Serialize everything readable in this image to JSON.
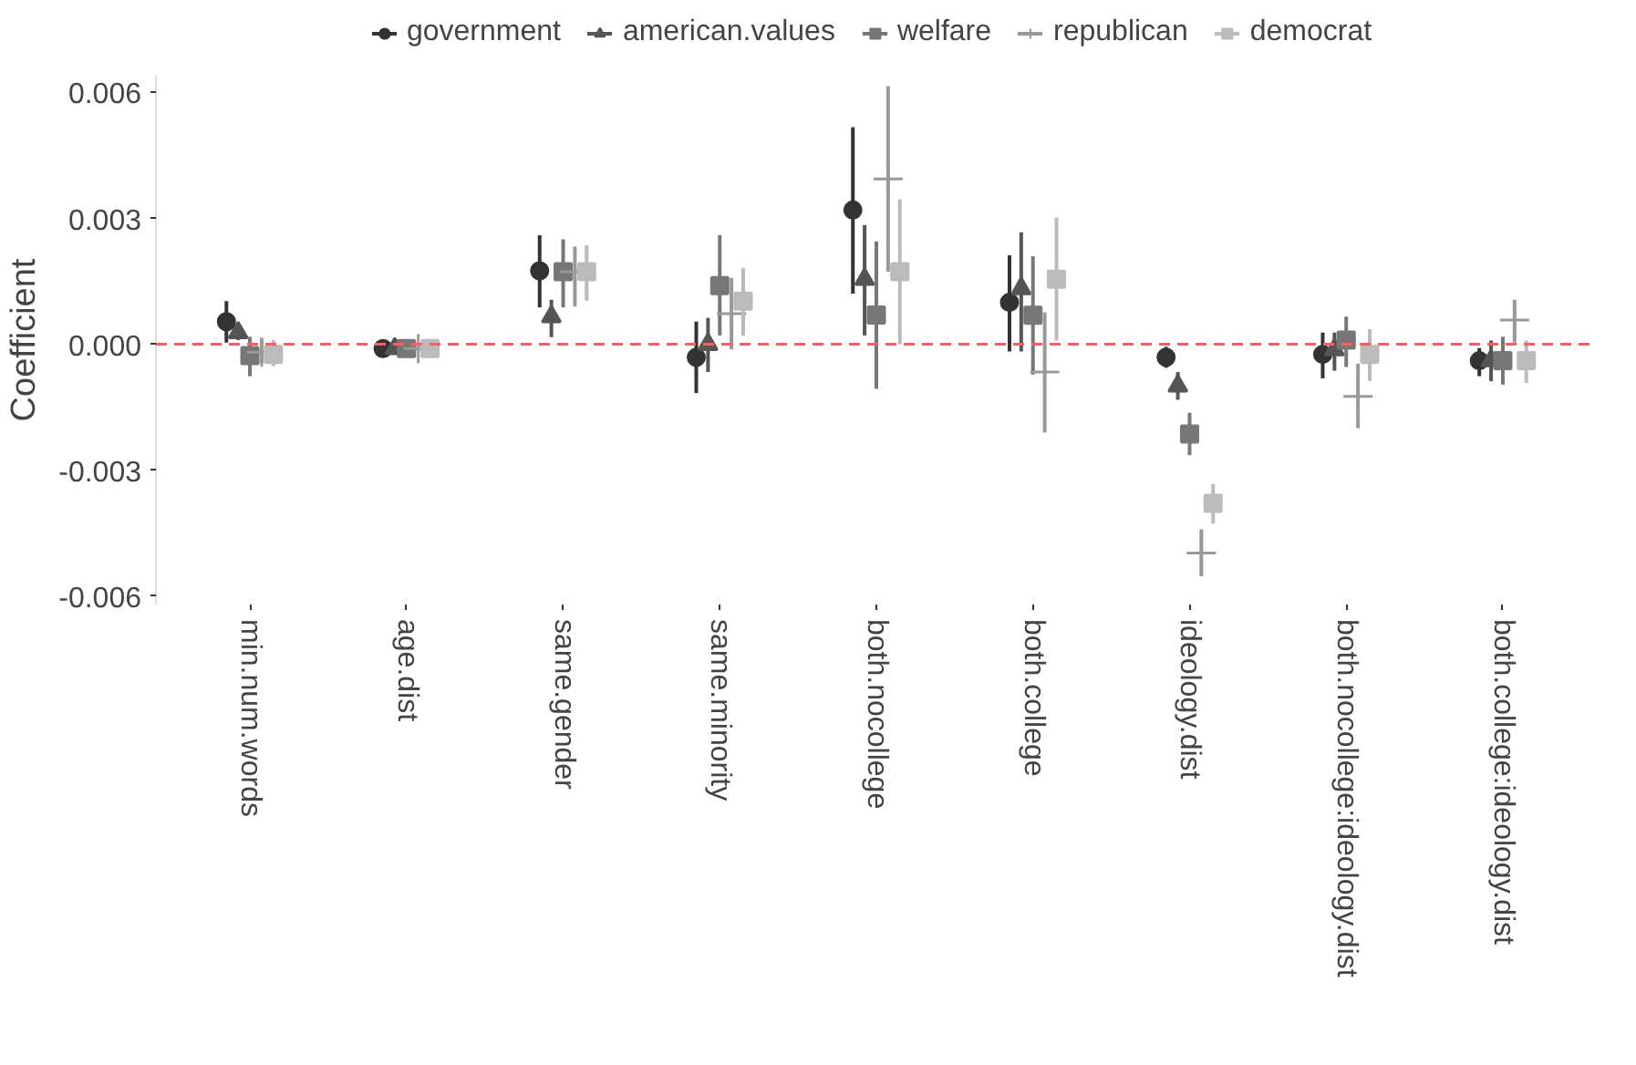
{
  "chart_data": {
    "type": "scatter",
    "ylabel": "Coefficient",
    "categories": [
      "min.num.words",
      "age.dist",
      "same.gender",
      "same.minority",
      "both.nocollege",
      "both.college",
      "ideology.dist",
      "both.nocollege:ideology.dist",
      "both.college:ideology.dist"
    ],
    "series": [
      {
        "name": "government",
        "color": "#333333",
        "marker": "circle",
        "values": [
          0.00054,
          -0.0001,
          0.00175,
          -0.00031,
          0.0032,
          0.001,
          -0.00031,
          -0.00024,
          -0.00039
        ],
        "errors": [
          [
            4e-05,
            0.00103
          ],
          [
            -0.00015,
            -3e-05
          ],
          [
            0.00088,
            0.0026
          ],
          [
            -0.00116,
            0.00054
          ],
          [
            0.00121,
            0.00517
          ],
          [
            -0.00017,
            0.00212
          ],
          [
            -0.00056,
            -6e-05
          ],
          [
            -0.00081,
            0.00028
          ],
          [
            -0.00076,
            -9e-05
          ]
        ]
      },
      {
        "name": "american.values",
        "color": "#555555",
        "marker": "triangle",
        "values": [
          0.00028,
          -0.0001,
          0.00066,
          0,
          0.00155,
          0.00133,
          -0.00099,
          -0.00013,
          -0.00039
        ],
        "errors": [
          [
            0.0001,
            0.00045
          ],
          [
            -0.00016,
            -4e-05
          ],
          [
            0.00017,
            0.00106
          ],
          [
            -0.00066,
            0.00063
          ],
          [
            0.00021,
            0.00284
          ],
          [
            -0.00017,
            0.00267
          ],
          [
            -0.00132,
            -0.00066
          ],
          [
            -0.00063,
            0.00028
          ],
          [
            -0.00088,
            9e-05
          ]
        ]
      },
      {
        "name": "welfare",
        "color": "#777777",
        "marker": "square",
        "values": [
          -0.00027,
          -0.0001,
          0.00173,
          0.0014,
          0.0007,
          0.00069,
          -0.00214,
          0.0001,
          -0.00039
        ],
        "errors": [
          [
            -0.00076,
            0.00018
          ],
          [
            -0.00016,
            -4e-05
          ],
          [
            0.00088,
            0.0025
          ],
          [
            0.00021,
            0.0026
          ],
          [
            -0.00106,
            0.00245
          ],
          [
            -0.00072,
            0.0021
          ],
          [
            -0.00264,
            -0.00163
          ],
          [
            -0.00054,
            0.00066
          ],
          [
            -0.00096,
            0.00018
          ]
        ]
      },
      {
        "name": "republican",
        "color": "#999999",
        "marker": "cross",
        "values": [
          -0.00019,
          -0.0001,
          0.00173,
          0.00073,
          0.00394,
          -0.00066,
          -0.00497,
          -0.00124,
          0.00058
        ],
        "errors": [
          [
            -0.00045,
            0.00013
          ],
          [
            -0.00016,
            0
          ],
          [
            0.0009,
            0.00233
          ],
          [
            -0.00012,
            0.00158
          ],
          [
            0.00173,
            0.00615
          ],
          [
            -0.0021,
            0.00076
          ],
          [
            -0.00553,
            -0.00441
          ],
          [
            -0.002,
            -0.00046
          ],
          [
            4e-05,
            0.00106
          ]
        ]
      },
      {
        "name": "democrat",
        "color": "#bbbbbb",
        "marker": "square",
        "values": [
          -0.00024,
          -0.0001,
          0.00173,
          0.00103,
          0.00173,
          0.00155,
          -0.00379,
          -0.00024,
          -0.00039
        ],
        "errors": [
          [
            -0.00052,
            0.0001
          ],
          [
            -0.00016,
            0
          ],
          [
            0.00104,
            0.00236
          ],
          [
            0.00021,
            0.00182
          ],
          [
            0,
            0.00345
          ],
          [
            9e-05,
            0.00302
          ],
          [
            -0.00427,
            -0.00333
          ],
          [
            -0.00088,
            0.00036
          ],
          [
            -0.00092,
            9e-05
          ]
        ]
      }
    ],
    "ylim": [
      -0.0062,
      0.0064
    ],
    "yticks": [
      {
        "value": -0.006,
        "label": "-0.006"
      },
      {
        "value": -0.003,
        "label": "-0.003"
      },
      {
        "value": 0,
        "label": "0.000"
      },
      {
        "value": 0.003,
        "label": "0.003"
      },
      {
        "value": 0.006,
        "label": "0.006"
      }
    ],
    "ref_lines": [
      {
        "axis": "y",
        "value": 0,
        "color": "#ff5a5f",
        "line_style": "dashed"
      }
    ],
    "grid": false,
    "legend": "top"
  }
}
